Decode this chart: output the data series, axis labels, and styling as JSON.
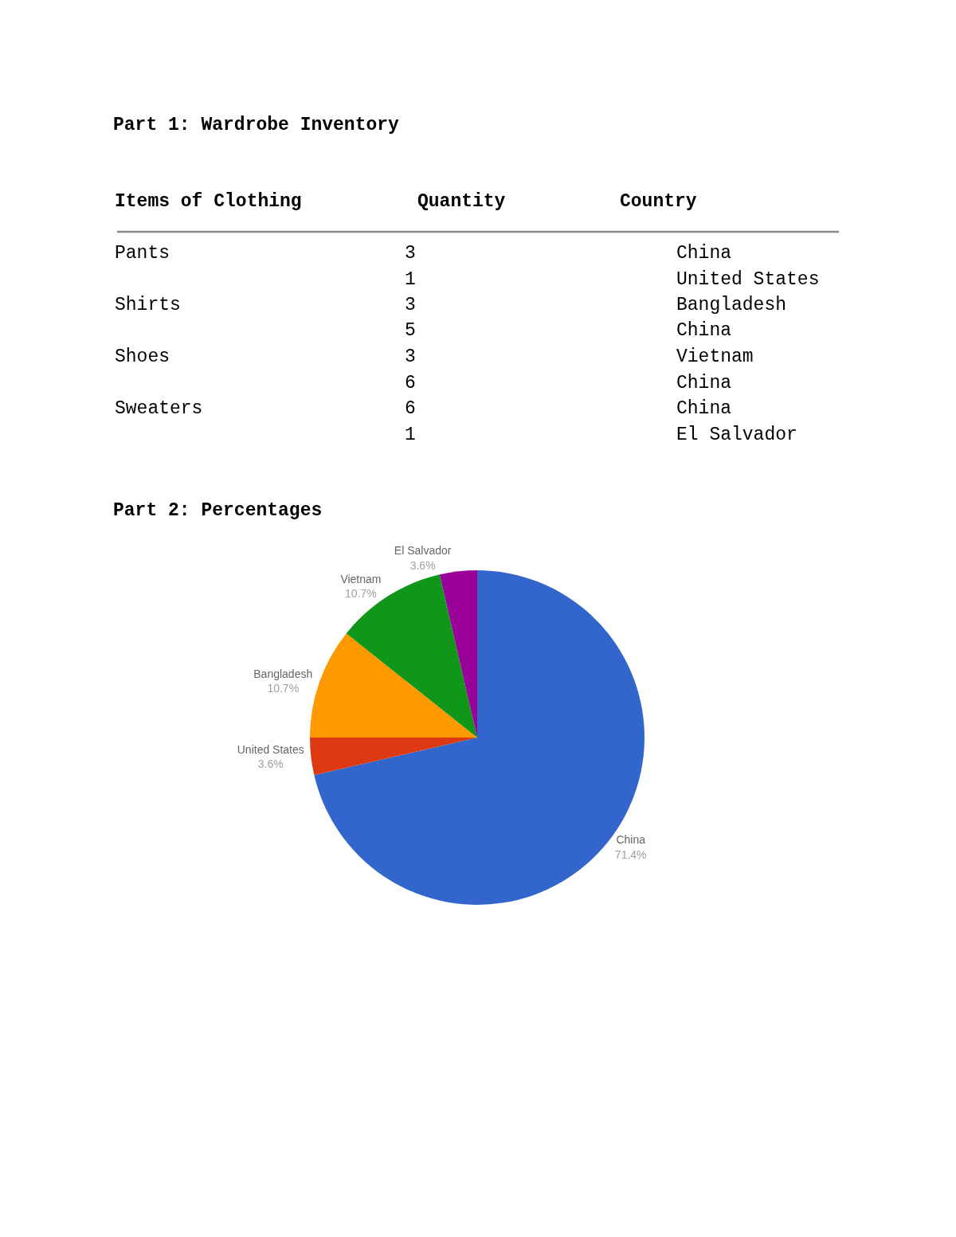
{
  "chart_data": [
    {
      "type": "other",
      "title": "Part 1: Wardrobe Inventory",
      "xlabel": "Items of Clothing",
      "ylabel": "Quantity",
      "y2label": "Country",
      "categories": [
        "Pants",
        null,
        "Shirts",
        null,
        "Shoes",
        null,
        "Sweaters",
        null
      ],
      "values": [
        3,
        1,
        3,
        5,
        3,
        6,
        6,
        1
      ],
      "data_labels": true,
      "y2_categories": [
        "China",
        "United States",
        "Bangladesh",
        "China",
        "Vietnam",
        "China",
        "China",
        "El Salvador"
      ]
    },
    {
      "type": "pie",
      "title": "Part 2: Percentages",
      "categories": [
        "China",
        "United States",
        "Bangladesh",
        "Vietnam",
        "El Salvador"
      ],
      "values": [
        71.4,
        3.6,
        10.7,
        10.7,
        3.6
      ],
      "colors": [
        "#3366cc",
        "#dc3912",
        "#ff9900",
        "#109618",
        "#990099"
      ],
      "value_labels": [
        "71.4%",
        "3.6%",
        "10.7%",
        "10.7%",
        "3.6%"
      ]
    }
  ]
}
